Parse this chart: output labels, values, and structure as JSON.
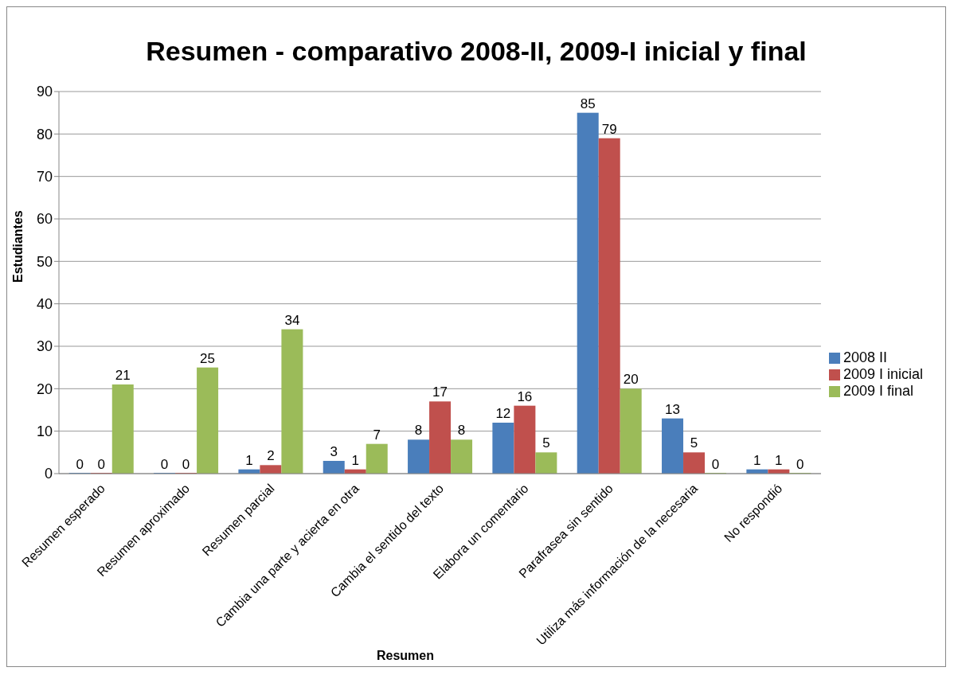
{
  "chart_data": {
    "type": "bar",
    "title": "Resumen - comparativo 2008-II, 2009-I inicial y final",
    "xlabel": "Resumen",
    "ylabel": "Estudiantes",
    "categories": [
      "Resumen esperado",
      "Resumen aproximado",
      "Resumen parcial",
      "Cambia una parte y acierta en otra",
      "Cambia el sentido del texto",
      "Elabora un comentario",
      "Parafrasea sin sentido",
      "Utiliza más información de la necesaria",
      "No respondió"
    ],
    "series": [
      {
        "name": "2008 II",
        "color": "#4a7ebb",
        "values": [
          0,
          0,
          1,
          3,
          8,
          12,
          85,
          13,
          1
        ]
      },
      {
        "name": "2009 I inicial",
        "color": "#c0504d",
        "values": [
          0,
          0,
          2,
          1,
          17,
          16,
          79,
          5,
          1
        ]
      },
      {
        "name": "2009 I final",
        "color": "#9bbb59",
        "values": [
          21,
          25,
          34,
          7,
          8,
          5,
          20,
          0,
          0
        ]
      }
    ],
    "ylim": [
      0,
      90
    ],
    "yticks": [
      0,
      10,
      20,
      30,
      40,
      50,
      60,
      70,
      80,
      90
    ],
    "grid": "y",
    "legend": "right",
    "data_labels": true
  }
}
